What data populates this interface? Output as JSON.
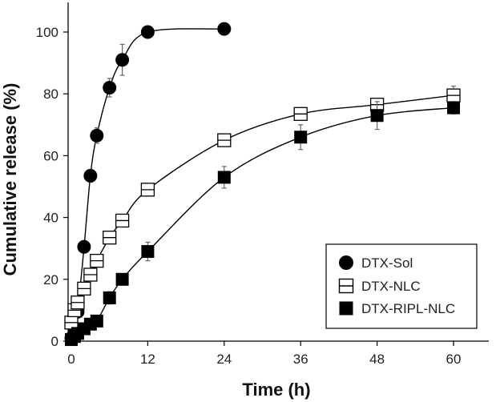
{
  "chart_data": {
    "type": "scatter",
    "title": "",
    "xlabel": "Time (h)",
    "ylabel": "Cumulative release (%)",
    "xlim": [
      -1,
      63
    ],
    "ylim": [
      0,
      108
    ],
    "xticks": [
      0,
      12,
      24,
      36,
      48,
      60
    ],
    "yticks": [
      0,
      20,
      40,
      60,
      80,
      100
    ],
    "grid": false,
    "legend_position": "bottom-right",
    "series": [
      {
        "name": "DTX-Sol",
        "marker": "filled-circle",
        "x": [
          0,
          0.5,
          1,
          2,
          3,
          4,
          6,
          8,
          12,
          24
        ],
        "y": [
          1,
          3,
          9.5,
          30.5,
          53.5,
          66.5,
          82,
          91,
          100,
          101
        ],
        "err": [
          0.5,
          1,
          1.5,
          2,
          2,
          2.5,
          3,
          5,
          1,
          1
        ]
      },
      {
        "name": "DTX-NLC",
        "marker": "open-square-line",
        "x": [
          0,
          0.5,
          1,
          2,
          3,
          4,
          6,
          8,
          12,
          24,
          36,
          48,
          60
        ],
        "y": [
          6,
          10,
          12.5,
          17,
          21.5,
          26,
          33.5,
          39,
          49,
          65,
          73.5,
          76.5,
          79.5
        ],
        "err": [
          0.5,
          1,
          1,
          1.5,
          1.5,
          1.5,
          2,
          1.5,
          1.5,
          1.5,
          2,
          2,
          3
        ]
      },
      {
        "name": "DTX-RIPL-NLC",
        "marker": "filled-square",
        "x": [
          0,
          0.5,
          1,
          2,
          3,
          4,
          6,
          8,
          12,
          24,
          36,
          48,
          60
        ],
        "y": [
          0.5,
          1.5,
          2.5,
          4,
          5.5,
          6.5,
          14,
          20,
          29,
          53,
          66,
          73,
          75.5
        ],
        "err": [
          0.5,
          0.5,
          1,
          1,
          1,
          1.5,
          2,
          1.5,
          3,
          3.5,
          4,
          4.5,
          2
        ]
      }
    ]
  }
}
